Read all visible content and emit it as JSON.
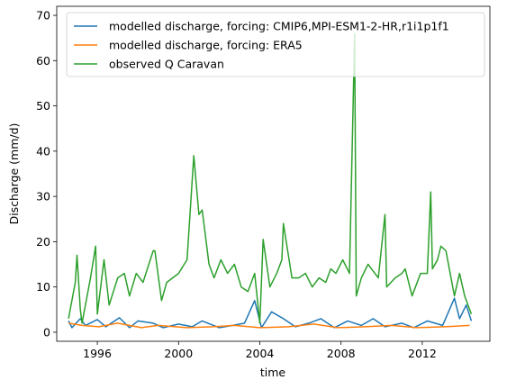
{
  "chart_data": {
    "type": "line",
    "title": "",
    "xlabel": "time",
    "ylabel": "Discharge (mm/d)",
    "xlim": [
      "1994-01-01",
      "2015-05-01"
    ],
    "ylim": [
      -2,
      72
    ],
    "x_ticks": [
      "1996",
      "2000",
      "2004",
      "2008",
      "2012"
    ],
    "y_ticks": [
      "0",
      "10",
      "20",
      "30",
      "40",
      "50",
      "60",
      "70"
    ],
    "grid": false,
    "legend_position": "top-right",
    "series": [
      {
        "name": "modelled discharge, forcing: CMIP6,MPI-ESM1-2-HR,r1i1p1f1",
        "color": "#1f77b4",
        "x": [
          "1994-08-01",
          "1994-10-01",
          "1995-03-01",
          "1995-06-01",
          "1996-01-01",
          "1996-06-01",
          "1997-02-01",
          "1997-08-01",
          "1998-01-01",
          "1998-10-01",
          "1999-04-01",
          "2000-01-01",
          "2000-09-01",
          "2001-03-01",
          "2002-01-01",
          "2002-09-01",
          "2003-04-01",
          "2003-10-01",
          "2004-02-01",
          "2004-08-01",
          "2005-03-01",
          "2005-10-01",
          "2006-06-01",
          "2007-01-01",
          "2007-09-01",
          "2008-05-01",
          "2009-01-01",
          "2009-08-01",
          "2010-03-01",
          "2011-01-01",
          "2011-08-01",
          "2012-04-01",
          "2013-01-01",
          "2013-08-01",
          "2013-11-01",
          "2014-03-01",
          "2014-06-01"
        ],
        "y": [
          2.5,
          1.0,
          3.0,
          1.5,
          2.8,
          1.2,
          3.2,
          1.0,
          2.5,
          2.0,
          1.0,
          1.8,
          1.2,
          2.5,
          1.0,
          1.5,
          2.0,
          7.0,
          1.0,
          4.5,
          3.0,
          1.2,
          2.0,
          3.0,
          1.0,
          2.5,
          1.5,
          3.0,
          1.2,
          2.0,
          1.0,
          2.5,
          1.5,
          7.5,
          3.0,
          6.0,
          2.5
        ]
      },
      {
        "name": "modelled discharge, forcing: ERA5",
        "color": "#ff7f0e",
        "x": [
          "1994-08-01",
          "1995-04-01",
          "1996-02-01",
          "1997-01-01",
          "1998-03-01",
          "1999-01-01",
          "2000-06-01",
          "2001-09-01",
          "2002-10-01",
          "2004-01-01",
          "2005-06-01",
          "2006-09-01",
          "2007-11-01",
          "2009-03-01",
          "2010-07-01",
          "2011-10-01",
          "2013-02-01",
          "2014-05-01"
        ],
        "y": [
          2.0,
          1.5,
          1.2,
          2.0,
          1.0,
          1.5,
          1.0,
          1.2,
          1.5,
          1.0,
          1.2,
          1.8,
          1.0,
          1.2,
          1.5,
          1.0,
          1.2,
          1.5
        ]
      },
      {
        "name": "observed Q Caravan",
        "color": "#2ca02c",
        "x": [
          "1994-08-01",
          "1994-12-01",
          "1995-01-01",
          "1995-03-01",
          "1995-04-01",
          "1995-09-01",
          "1995-12-01",
          "1996-01-01",
          "1996-05-01",
          "1996-08-01",
          "1997-01-01",
          "1997-05-01",
          "1997-08-01",
          "1997-12-01",
          "1998-04-01",
          "1998-10-01",
          "1998-11-01",
          "1999-03-01",
          "1999-06-01",
          "2000-01-01",
          "2000-06-01",
          "2000-10-01",
          "2001-01-01",
          "2001-03-01",
          "2001-07-01",
          "2001-10-01",
          "2002-02-01",
          "2002-06-01",
          "2002-10-01",
          "2003-02-01",
          "2003-06-01",
          "2003-10-01",
          "2004-01-01",
          "2004-03-01",
          "2004-07-01",
          "2004-11-01",
          "2005-02-01",
          "2005-03-01",
          "2005-08-01",
          "2005-12-01",
          "2006-04-01",
          "2006-08-01",
          "2006-12-01",
          "2007-04-01",
          "2007-07-01",
          "2007-10-01",
          "2008-02-01",
          "2008-06-01",
          "2008-09-01",
          "2008-10-01",
          "2009-01-01",
          "2009-05-01",
          "2009-07-01",
          "2009-11-01",
          "2010-03-01",
          "2010-04-01",
          "2010-09-01",
          "2011-01-01",
          "2011-03-01",
          "2011-07-01",
          "2011-12-01",
          "2012-04-01",
          "2012-06-01",
          "2012-07-01",
          "2012-10-01",
          "2012-12-01",
          "2013-03-01",
          "2013-08-01",
          "2013-11-01",
          "2014-02-01",
          "2014-06-01"
        ],
        "y": [
          3.0,
          11.0,
          17.0,
          5.0,
          2.0,
          12.0,
          19.0,
          4.0,
          16.0,
          6.0,
          12.0,
          13.0,
          8.0,
          13.0,
          11.0,
          18.0,
          18.0,
          7.0,
          11.0,
          13.0,
          16.0,
          39.0,
          26.0,
          27.0,
          15.0,
          12.0,
          16.0,
          13.0,
          15.0,
          10.0,
          9.0,
          13.0,
          2.0,
          20.5,
          10.0,
          13.0,
          16.0,
          24.0,
          12.0,
          12.0,
          13.0,
          10.0,
          12.0,
          11.0,
          14.0,
          13.0,
          16.0,
          13.0,
          66.0,
          8.0,
          12.0,
          15.0,
          14.0,
          12.0,
          26.0,
          10.0,
          12.0,
          13.0,
          14.0,
          8.0,
          13.0,
          13.0,
          31.0,
          14.0,
          16.0,
          19.0,
          18.0,
          8.0,
          13.0,
          8.0,
          4.0
        ]
      }
    ]
  }
}
